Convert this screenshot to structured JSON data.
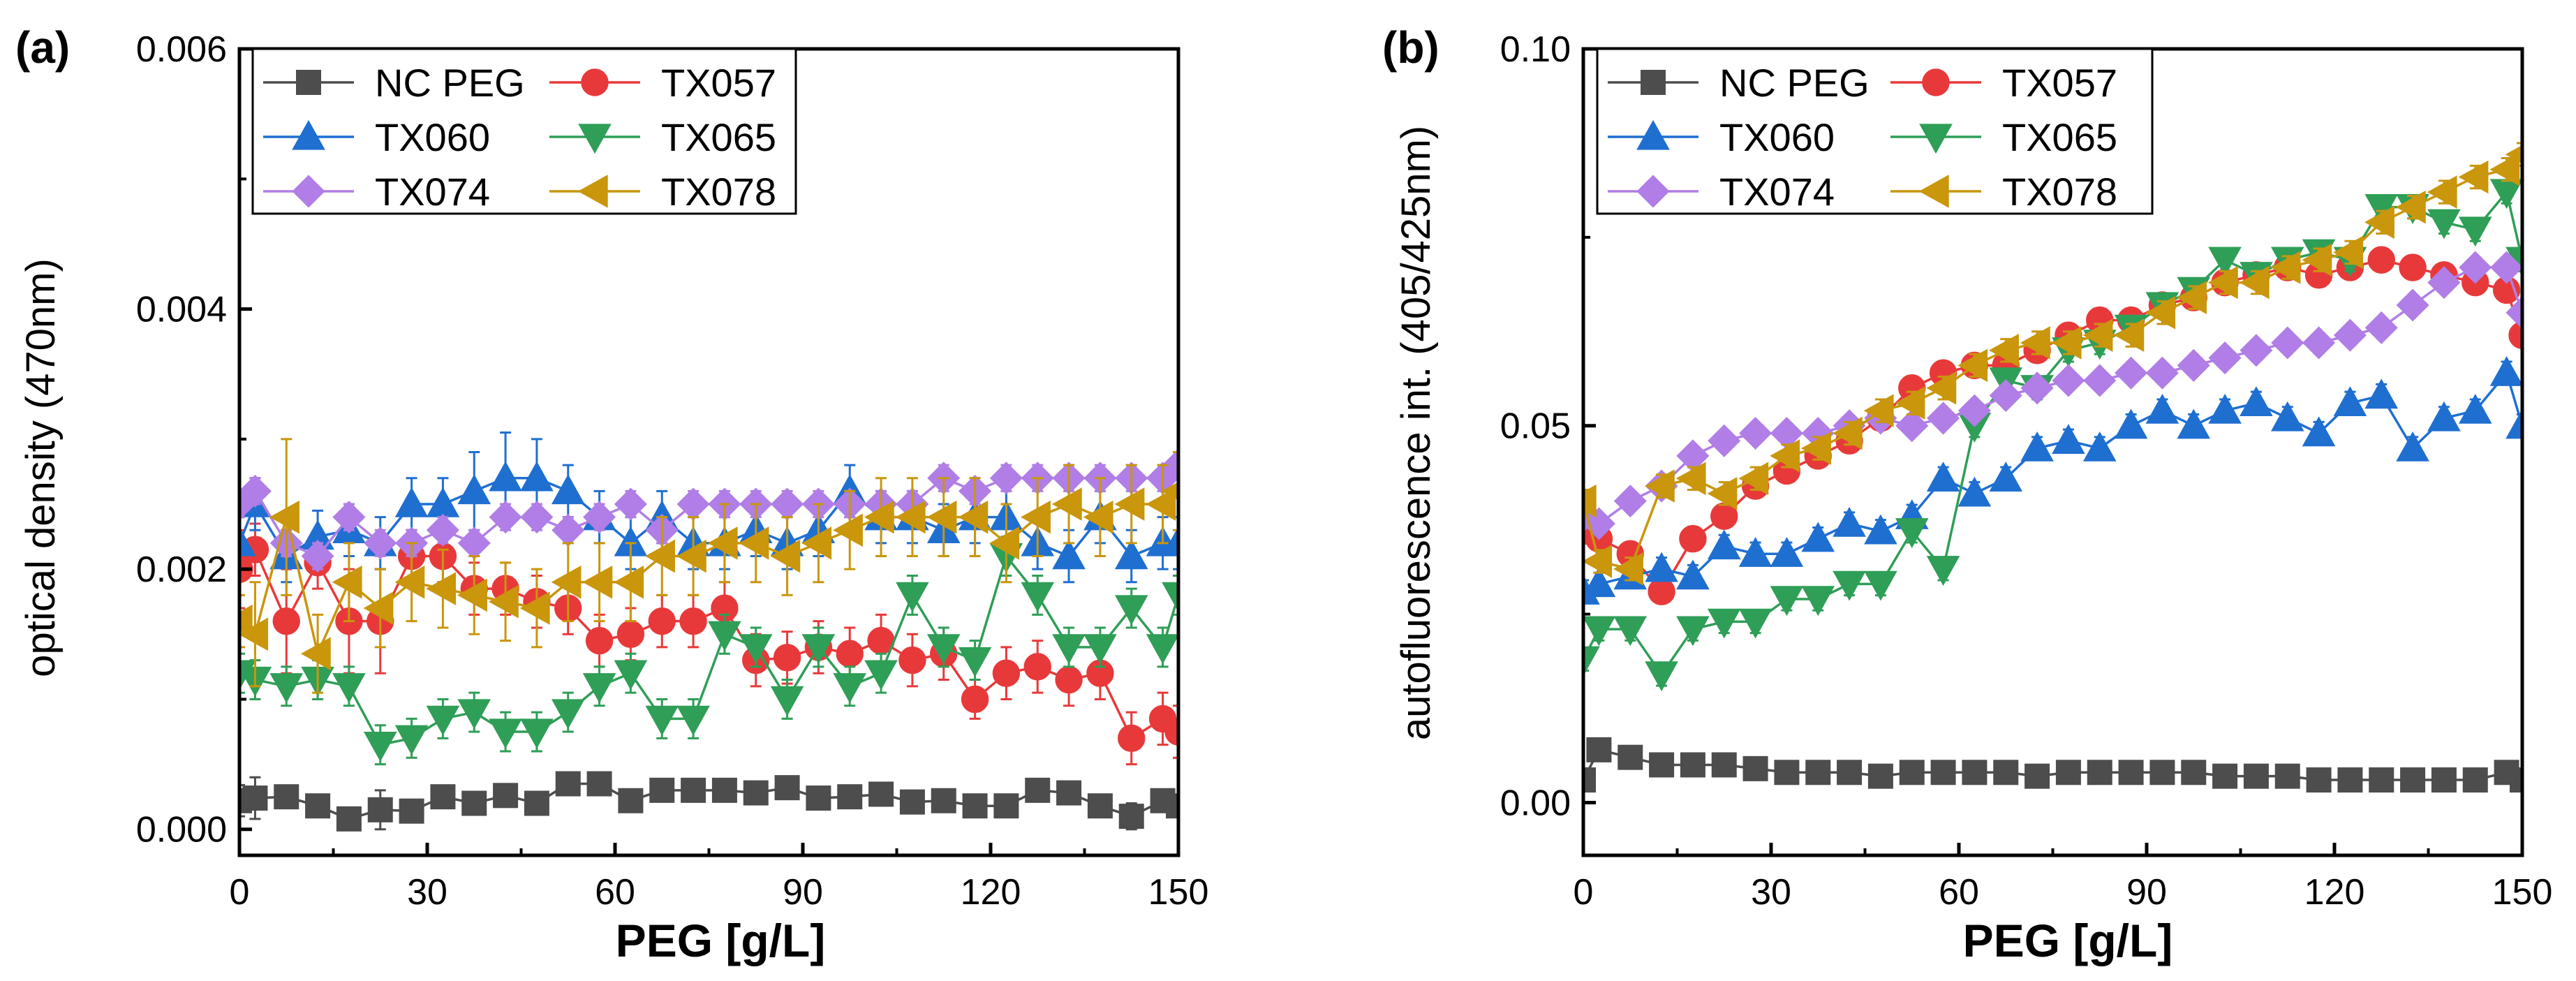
{
  "chart_data": [
    {
      "panel_label": "(a)",
      "type": "line",
      "xlabel": "PEG [g/L]",
      "ylabel": "optical density (470nm)",
      "xlim": [
        0,
        150
      ],
      "ylim": [
        -0.0002,
        0.006
      ],
      "xticks": [
        0,
        30,
        60,
        90,
        120,
        150
      ],
      "xtick_labels": [
        "0",
        "30",
        "60",
        "90",
        "120",
        "150"
      ],
      "yticks": [
        0.0,
        0.002,
        0.004,
        0.006
      ],
      "ytick_labels": [
        "0.000",
        "0.002",
        "0.004",
        "0.006"
      ],
      "x": [
        0,
        2.5,
        7.5,
        12.5,
        17.5,
        22.5,
        27.5,
        32.5,
        37.5,
        42.5,
        47.5,
        52.5,
        57.5,
        62.5,
        67.5,
        72.5,
        77.5,
        82.5,
        87.5,
        92.5,
        97.5,
        102.5,
        107.5,
        112.5,
        117.5,
        122.5,
        127.5,
        132.5,
        137.5,
        142.5,
        147.5,
        150
      ],
      "legend_position": "top-left",
      "series": [
        {
          "name": "NC PEG",
          "color": "#4d4d4d",
          "marker": "square",
          "values": [
            0.00022,
            0.00024,
            0.00025,
            0.00018,
            8e-05,
            0.00015,
            0.00014,
            0.00025,
            0.0002,
            0.00026,
            0.0002,
            0.00035,
            0.00035,
            0.00022,
            0.0003,
            0.0003,
            0.0003,
            0.00028,
            0.00032,
            0.00024,
            0.00025,
            0.00027,
            0.00021,
            0.00022,
            0.00018,
            0.00018,
            0.0003,
            0.00028,
            0.00018,
            0.0001,
            0.00022,
            0.00018
          ],
          "err": [
            0.00012,
            0.00016,
            8e-05,
            8e-05,
            8e-05,
            0.00015,
            8e-05,
            8e-05,
            8e-05,
            8e-05,
            8e-05,
            6e-05,
            6e-05,
            6e-05,
            6e-05,
            6e-05,
            6e-05,
            6e-05,
            6e-05,
            6e-05,
            6e-05,
            6e-05,
            6e-05,
            6e-05,
            6e-05,
            6e-05,
            6e-05,
            6e-05,
            6e-05,
            0.0001,
            6e-05,
            6e-05
          ]
        },
        {
          "name": "TX057",
          "color": "#e8393a",
          "marker": "circle",
          "values": [
            0.002,
            0.00215,
            0.0016,
            0.00205,
            0.0016,
            0.0016,
            0.0021,
            0.0021,
            0.00185,
            0.00185,
            0.00175,
            0.0017,
            0.00145,
            0.0015,
            0.0016,
            0.0016,
            0.0017,
            0.0013,
            0.00132,
            0.0014,
            0.00135,
            0.00145,
            0.0013,
            0.00135,
            0.001,
            0.0012,
            0.00125,
            0.00115,
            0.0012,
            0.0007,
            0.00085,
            0.00075
          ],
          "err": [
            0.0003,
            0.0002,
            0.0004,
            0.0002,
            0.0004,
            0.0004,
            0.0002,
            0.0002,
            0.0002,
            0.0002,
            0.0002,
            0.0002,
            0.0002,
            0.0002,
            0.0002,
            0.0002,
            0.0002,
            0.0002,
            0.0002,
            0.0002,
            0.0002,
            0.0002,
            0.0002,
            0.0002,
            0.00015,
            0.0002,
            0.0002,
            0.0002,
            0.0002,
            0.0002,
            0.0002,
            0.0002
          ]
        },
        {
          "name": "TX060",
          "color": "#1f6fd1",
          "marker": "triangle-up",
          "values": [
            0.0022,
            0.0025,
            0.0021,
            0.00225,
            0.0023,
            0.0022,
            0.0025,
            0.0025,
            0.0026,
            0.0027,
            0.0027,
            0.0026,
            0.0024,
            0.0022,
            0.0024,
            0.0022,
            0.0022,
            0.0023,
            0.0022,
            0.0023,
            0.0026,
            0.0024,
            0.0024,
            0.0023,
            0.0024,
            0.0024,
            0.0022,
            0.0021,
            0.0024,
            0.0021,
            0.0022,
            0.0022
          ],
          "err": [
            0.0002,
            0.0002,
            0.0002,
            0.0002,
            0.0002,
            0.0002,
            0.0002,
            0.0002,
            0.0003,
            0.00035,
            0.0003,
            0.0002,
            0.0002,
            0.0002,
            0.0002,
            0.0002,
            0.0002,
            0.0002,
            0.0002,
            0.0002,
            0.0002,
            0.0002,
            0.0002,
            0.0002,
            0.0002,
            0.0002,
            0.0002,
            0.0002,
            0.0002,
            0.0002,
            0.0002,
            0.0002
          ]
        },
        {
          "name": "TX065",
          "color": "#2f9e57",
          "marker": "triangle-down",
          "values": [
            0.0012,
            0.00115,
            0.0011,
            0.00115,
            0.0011,
            0.00065,
            0.0007,
            0.00085,
            0.0009,
            0.00075,
            0.00075,
            0.0009,
            0.0011,
            0.0012,
            0.00085,
            0.00085,
            0.0015,
            0.0014,
            0.001,
            0.0014,
            0.0011,
            0.0012,
            0.0018,
            0.0014,
            0.0013,
            0.0021,
            0.0018,
            0.0014,
            0.0014,
            0.0017,
            0.0014,
            0.0018
          ],
          "err": [
            0.00015,
            0.00015,
            0.00015,
            0.00015,
            0.00015,
            0.00015,
            0.00015,
            0.00015,
            0.00015,
            0.00015,
            0.00015,
            0.00015,
            0.00015,
            0.00015,
            0.00015,
            0.00015,
            0.00015,
            0.00015,
            0.00015,
            0.00015,
            0.00015,
            0.00015,
            0.00015,
            0.00015,
            0.00015,
            0.00015,
            0.00015,
            0.00015,
            0.00015,
            0.00015,
            0.00015,
            0.00015
          ]
        },
        {
          "name": "TX074",
          "color": "#b07ee6",
          "marker": "diamond",
          "values": [
            0.0025,
            0.0026,
            0.0022,
            0.0021,
            0.0024,
            0.0022,
            0.0022,
            0.0023,
            0.0022,
            0.0024,
            0.0024,
            0.0023,
            0.0024,
            0.0025,
            0.0023,
            0.0025,
            0.0025,
            0.0025,
            0.0025,
            0.0025,
            0.0025,
            0.0025,
            0.0025,
            0.0027,
            0.0026,
            0.0027,
            0.0027,
            0.0027,
            0.0027,
            0.0027,
            0.0027,
            0.0028
          ],
          "err": [
            0.0001,
            0.0001,
            0.0001,
            0.0001,
            0.0001,
            0.0001,
            0.0001,
            0.0001,
            0.0001,
            0.0001,
            0.0001,
            0.0001,
            0.0001,
            0.0001,
            0.0001,
            0.0001,
            0.0001,
            0.0001,
            0.0001,
            0.0001,
            0.0001,
            0.0001,
            0.0001,
            0.0001,
            0.0001,
            0.0001,
            0.0001,
            0.0001,
            0.0001,
            0.0001,
            0.0001,
            0.0001
          ]
        },
        {
          "name": "TX078",
          "color": "#c9960c",
          "marker": "triangle-left",
          "values": [
            0.0016,
            0.0015,
            0.0024,
            0.00135,
            0.0019,
            0.0017,
            0.0019,
            0.00185,
            0.0018,
            0.00175,
            0.0017,
            0.0019,
            0.0019,
            0.0019,
            0.0021,
            0.0021,
            0.0022,
            0.0022,
            0.0021,
            0.0022,
            0.0023,
            0.0024,
            0.0024,
            0.0024,
            0.0024,
            0.0022,
            0.0024,
            0.0025,
            0.0024,
            0.0025,
            0.0025,
            0.0026
          ],
          "err": [
            0.0002,
            0.0004,
            0.0006,
            0.0003,
            0.0003,
            0.0003,
            0.0003,
            0.0003,
            0.0003,
            0.0003,
            0.0003,
            0.0003,
            0.0003,
            0.0003,
            0.0003,
            0.0003,
            0.0003,
            0.0003,
            0.0003,
            0.0003,
            0.0003,
            0.0003,
            0.0003,
            0.0003,
            0.0003,
            0.0003,
            0.0003,
            0.0003,
            0.0003,
            0.0003,
            0.0003,
            0.0003
          ]
        }
      ]
    },
    {
      "panel_label": "(b)",
      "type": "line",
      "xlabel": "PEG [g/L]",
      "ylabel": "autofluorescence int. (405/425nm)",
      "xlim": [
        0,
        150
      ],
      "ylim": [
        -0.007,
        0.1
      ],
      "xticks": [
        0,
        30,
        60,
        90,
        120,
        150
      ],
      "xtick_labels": [
        "0",
        "30",
        "60",
        "90",
        "120",
        "150"
      ],
      "yticks": [
        0.0,
        0.05,
        0.1
      ],
      "ytick_labels": [
        "0.00",
        "0.05",
        "0.10"
      ],
      "x": [
        0,
        2.5,
        7.5,
        12.5,
        17.5,
        22.5,
        27.5,
        32.5,
        37.5,
        42.5,
        47.5,
        52.5,
        57.5,
        62.5,
        67.5,
        72.5,
        77.5,
        82.5,
        87.5,
        92.5,
        97.5,
        102.5,
        107.5,
        112.5,
        117.5,
        122.5,
        127.5,
        132.5,
        137.5,
        142.5,
        147.5,
        150
      ],
      "legend_position": "top-left",
      "series": [
        {
          "name": "NC PEG",
          "color": "#4d4d4d",
          "marker": "square",
          "values": [
            0.003,
            0.007,
            0.006,
            0.005,
            0.005,
            0.005,
            0.0045,
            0.004,
            0.004,
            0.004,
            0.0035,
            0.004,
            0.004,
            0.004,
            0.004,
            0.0035,
            0.004,
            0.004,
            0.004,
            0.004,
            0.004,
            0.0035,
            0.0035,
            0.0035,
            0.003,
            0.003,
            0.003,
            0.003,
            0.003,
            0.003,
            0.004,
            0.003
          ],
          "err": [
            0.001,
            0.001,
            0.001,
            0.001,
            0.001,
            0.001,
            0.001,
            0.001,
            0.001,
            0.001,
            0.001,
            0.001,
            0.001,
            0.001,
            0.001,
            0.001,
            0.001,
            0.001,
            0.001,
            0.001,
            0.001,
            0.001,
            0.001,
            0.001,
            0.001,
            0.001,
            0.001,
            0.001,
            0.001,
            0.001,
            0.001,
            0.001
          ]
        },
        {
          "name": "TX057",
          "color": "#e8393a",
          "marker": "circle",
          "values": [
            0.036,
            0.035,
            0.033,
            0.028,
            0.035,
            0.038,
            0.042,
            0.044,
            0.046,
            0.048,
            0.051,
            0.055,
            0.057,
            0.058,
            0.058,
            0.06,
            0.062,
            0.064,
            0.064,
            0.066,
            0.067,
            0.069,
            0.07,
            0.071,
            0.07,
            0.071,
            0.072,
            0.071,
            0.07,
            0.069,
            0.068,
            0.062
          ],
          "err": [
            0.0015,
            0.0015,
            0.0015,
            0.0015,
            0.0015,
            0.0015,
            0.0015,
            0.0015,
            0.0015,
            0.0015,
            0.0015,
            0.0015,
            0.0015,
            0.0015,
            0.0015,
            0.0015,
            0.0015,
            0.0015,
            0.0015,
            0.0015,
            0.0015,
            0.0015,
            0.0015,
            0.0015,
            0.0015,
            0.0015,
            0.0015,
            0.0015,
            0.0015,
            0.0015,
            0.0015,
            0.0015
          ]
        },
        {
          "name": "TX060",
          "color": "#1f6fd1",
          "marker": "triangle-up",
          "values": [
            0.028,
            0.029,
            0.03,
            0.031,
            0.03,
            0.034,
            0.033,
            0.033,
            0.035,
            0.037,
            0.036,
            0.038,
            0.043,
            0.041,
            0.043,
            0.047,
            0.048,
            0.047,
            0.05,
            0.052,
            0.05,
            0.052,
            0.053,
            0.051,
            0.049,
            0.053,
            0.054,
            0.047,
            0.051,
            0.052,
            0.057,
            0.05
          ],
          "err": [
            0.0015,
            0.0015,
            0.0015,
            0.0015,
            0.0015,
            0.0015,
            0.0015,
            0.0015,
            0.0015,
            0.0015,
            0.0015,
            0.0015,
            0.0015,
            0.0015,
            0.0015,
            0.0015,
            0.0015,
            0.0015,
            0.0015,
            0.0015,
            0.0015,
            0.0015,
            0.0015,
            0.0015,
            0.0015,
            0.0015,
            0.0015,
            0.0015,
            0.0015,
            0.0015,
            0.0015,
            0.0015
          ]
        },
        {
          "name": "TX065",
          "color": "#2f9e57",
          "marker": "triangle-down",
          "values": [
            0.019,
            0.023,
            0.023,
            0.017,
            0.023,
            0.024,
            0.024,
            0.027,
            0.027,
            0.029,
            0.029,
            0.036,
            0.031,
            0.05,
            0.056,
            0.055,
            0.06,
            0.061,
            0.063,
            0.066,
            0.068,
            0.072,
            0.07,
            0.072,
            0.073,
            0.072,
            0.079,
            0.079,
            0.077,
            0.076,
            0.081,
            0.072
          ],
          "err": [
            0.0015,
            0.0015,
            0.0015,
            0.0015,
            0.0015,
            0.0015,
            0.0015,
            0.0015,
            0.0015,
            0.0015,
            0.0015,
            0.0015,
            0.0015,
            0.0015,
            0.0015,
            0.0015,
            0.0015,
            0.0015,
            0.0015,
            0.0015,
            0.0015,
            0.0015,
            0.0015,
            0.0015,
            0.0015,
            0.0015,
            0.0015,
            0.0015,
            0.0015,
            0.0015,
            0.0015,
            0.0015
          ]
        },
        {
          "name": "TX074",
          "color": "#b07ee6",
          "marker": "diamond",
          "values": [
            0.038,
            0.037,
            0.04,
            0.042,
            0.046,
            0.048,
            0.049,
            0.049,
            0.049,
            0.05,
            0.051,
            0.05,
            0.051,
            0.052,
            0.054,
            0.055,
            0.056,
            0.056,
            0.057,
            0.057,
            0.058,
            0.059,
            0.06,
            0.061,
            0.061,
            0.062,
            0.063,
            0.066,
            0.069,
            0.071,
            0.071,
            0.065
          ],
          "err": [
            0.001,
            0.001,
            0.001,
            0.001,
            0.001,
            0.001,
            0.001,
            0.001,
            0.001,
            0.001,
            0.001,
            0.001,
            0.001,
            0.001,
            0.001,
            0.001,
            0.001,
            0.001,
            0.001,
            0.001,
            0.001,
            0.001,
            0.001,
            0.001,
            0.001,
            0.001,
            0.001,
            0.001,
            0.001,
            0.001,
            0.001,
            0.001
          ]
        },
        {
          "name": "TX078",
          "color": "#c9960c",
          "marker": "triangle-left",
          "values": [
            0.04,
            0.032,
            0.031,
            0.042,
            0.043,
            0.041,
            0.043,
            0.046,
            0.047,
            0.049,
            0.052,
            0.053,
            0.055,
            0.058,
            0.06,
            0.061,
            0.061,
            0.062,
            0.062,
            0.065,
            0.067,
            0.069,
            0.069,
            0.071,
            0.072,
            0.073,
            0.077,
            0.079,
            0.081,
            0.083,
            0.084,
            0.086
          ],
          "err": [
            0.0015,
            0.0015,
            0.0015,
            0.0015,
            0.0015,
            0.0015,
            0.0015,
            0.0015,
            0.0015,
            0.0015,
            0.0015,
            0.0015,
            0.0015,
            0.0015,
            0.0015,
            0.0015,
            0.0015,
            0.0015,
            0.0015,
            0.0015,
            0.0015,
            0.0015,
            0.0015,
            0.0015,
            0.0015,
            0.0015,
            0.0015,
            0.0015,
            0.0015,
            0.0015,
            0.0015,
            0.0015
          ]
        }
      ]
    }
  ]
}
